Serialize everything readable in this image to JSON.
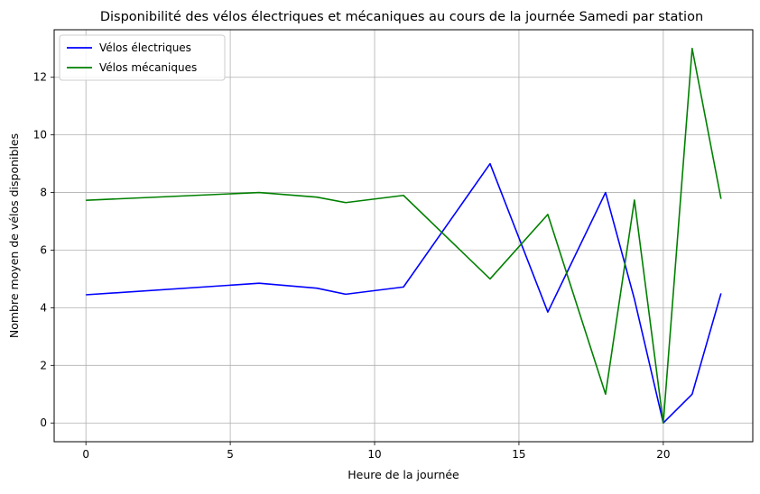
{
  "chart_data": {
    "type": "line",
    "title": "Disponibilité des vélos électriques et mécaniques au cours de la journée Samedi par station",
    "xlabel": "Heure de la journée",
    "ylabel": "Nombre moyen de vélos disponibles",
    "xlim": [
      -1.1,
      23.1
    ],
    "ylim": [
      -0.65,
      13.65
    ],
    "xticks": [
      0,
      5,
      10,
      15,
      20
    ],
    "yticks": [
      0,
      2,
      4,
      6,
      8,
      10,
      12
    ],
    "grid": true,
    "legend_position": "top-left",
    "series": [
      {
        "name": "Vélos électriques",
        "color": "#0000ff",
        "x": [
          0,
          6,
          8,
          9,
          11,
          14,
          16,
          18,
          19,
          20,
          21,
          22
        ],
        "y": [
          4.45,
          4.85,
          4.68,
          4.47,
          4.72,
          9.0,
          3.85,
          8.0,
          4.3,
          0.0,
          1.0,
          4.5
        ]
      },
      {
        "name": "Vélos mécaniques",
        "color": "#008000",
        "x": [
          0,
          6,
          8,
          9,
          11,
          14,
          16,
          18,
          19,
          20,
          21,
          22
        ],
        "y": [
          7.73,
          8.0,
          7.84,
          7.65,
          7.9,
          5.0,
          7.24,
          1.0,
          7.74,
          0.0,
          13.0,
          7.78
        ]
      }
    ]
  }
}
